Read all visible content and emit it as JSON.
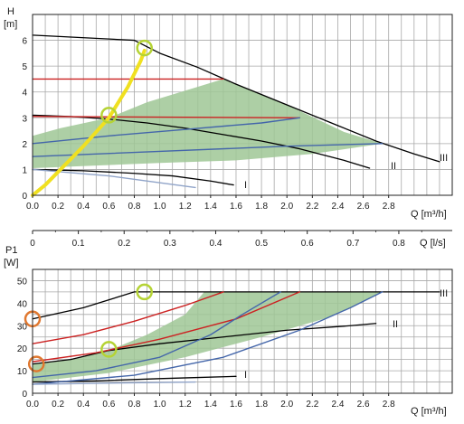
{
  "chart_data": [
    {
      "type": "line",
      "title": "",
      "ylabel": "H",
      "yunit": "[m]",
      "xlabel": "Q [m³/h]",
      "xlim": [
        0,
        3.3
      ],
      "ylim": [
        0,
        7
      ],
      "grid": true,
      "x_ticks": [
        "0.0",
        "0.2",
        "0.4",
        "0.6",
        "0.8",
        "1.0",
        "1.2",
        "1.4",
        "1.6",
        "1.8",
        "2.0",
        "2.2",
        "2.4",
        "2.6",
        "2.8"
      ],
      "y_ticks": [
        "0",
        "1",
        "2",
        "3",
        "4",
        "5",
        "6"
      ],
      "curve_labels": [
        "I",
        "II",
        "III"
      ],
      "shaded_region": [
        [
          0,
          2.3
        ],
        [
          0.22,
          2.6
        ],
        [
          0.6,
          3.0
        ],
        [
          0.9,
          3.6
        ],
        [
          1.3,
          4.2
        ],
        [
          1.5,
          4.5
        ],
        [
          2.0,
          3.5
        ],
        [
          2.45,
          2.45
        ],
        [
          2.75,
          2.0
        ],
        [
          2.2,
          1.6
        ],
        [
          1.6,
          1.35
        ],
        [
          1.0,
          1.25
        ],
        [
          0.5,
          1.15
        ],
        [
          0,
          1.05
        ]
      ],
      "series": [
        {
          "color": "#000000",
          "values": [
            [
              0,
              6.2
            ],
            [
              0.8,
              6.0
            ],
            [
              1.0,
              5.5
            ],
            [
              1.3,
              4.95
            ],
            [
              1.6,
              4.3
            ],
            [
              2.0,
              3.5
            ],
            [
              2.4,
              2.7
            ],
            [
              2.7,
              2.1
            ],
            [
              3.0,
              1.6
            ],
            [
              3.2,
              1.3
            ]
          ]
        },
        {
          "color": "#000000",
          "values": [
            [
              0,
              3.1
            ],
            [
              0.3,
              3.05
            ],
            [
              0.6,
              2.95
            ],
            [
              0.9,
              2.8
            ],
            [
              1.2,
              2.6
            ],
            [
              1.5,
              2.35
            ],
            [
              1.8,
              2.1
            ],
            [
              2.1,
              1.8
            ],
            [
              2.45,
              1.35
            ],
            [
              2.65,
              1.05
            ]
          ]
        },
        {
          "color": "#000000",
          "values": [
            [
              0,
              1.0
            ],
            [
              0.4,
              0.95
            ],
            [
              0.8,
              0.85
            ],
            [
              1.1,
              0.75
            ],
            [
              1.4,
              0.55
            ],
            [
              1.58,
              0.4
            ]
          ]
        },
        {
          "color": "#cc2222",
          "values": [
            [
              0,
              4.5
            ],
            [
              1.5,
              4.5
            ]
          ]
        },
        {
          "color": "#cc2222",
          "values": [
            [
              0,
              3.05
            ],
            [
              2.1,
              3.0
            ]
          ]
        },
        {
          "color": "#4466aa",
          "values": [
            [
              0,
              2.0
            ],
            [
              0.6,
              2.3
            ],
            [
              1.2,
              2.55
            ],
            [
              1.8,
              2.8
            ],
            [
              2.1,
              3.0
            ]
          ]
        },
        {
          "color": "#4466aa",
          "values": [
            [
              0,
              1.5
            ],
            [
              1.0,
              1.7
            ],
            [
              2.0,
              1.9
            ],
            [
              2.75,
              2.0
            ]
          ]
        },
        {
          "color": "#8fa3c8",
          "values": [
            [
              0,
              1.0
            ],
            [
              0.6,
              0.75
            ],
            [
              1.28,
              0.3
            ]
          ]
        },
        {
          "color": "#f0e020",
          "values": [
            [
              0,
              0
            ],
            [
              0.1,
              0.4
            ],
            [
              0.22,
              1.0
            ],
            [
              0.4,
              1.9
            ],
            [
              0.6,
              3.0
            ],
            [
              0.75,
              4.2
            ],
            [
              0.85,
              5.2
            ],
            [
              0.88,
              5.6
            ]
          ]
        }
      ],
      "markers": [
        {
          "color": "#b5d335",
          "x": 0.88,
          "y": 5.7
        },
        {
          "color": "#b5d335",
          "x": 0.6,
          "y": 3.1
        }
      ]
    },
    {
      "type": "line",
      "title": "",
      "xlabel": "Q [l/s]",
      "xlim": [
        0,
        0.9167
      ],
      "x_ticks": [
        "0",
        "0.1",
        "0.2",
        "0.3",
        "0.4",
        "0.5",
        "0.6",
        "0.7",
        "0.8"
      ]
    },
    {
      "type": "line",
      "title": "",
      "ylabel": "P1",
      "yunit": "[W]",
      "xlabel": "Q [m³/h]",
      "xlim": [
        0,
        3.3
      ],
      "ylim": [
        0,
        55
      ],
      "grid": true,
      "x_ticks": [
        "0.0",
        "0.2",
        "0.4",
        "0.6",
        "0.8",
        "1.0",
        "1.2",
        "1.4",
        "1.6",
        "1.8",
        "2.0",
        "2.2",
        "2.4",
        "2.6",
        "2.8"
      ],
      "y_ticks": [
        "0",
        "10",
        "20",
        "30",
        "40",
        "50"
      ],
      "curve_labels": [
        "I",
        "II",
        "III"
      ],
      "shaded_region": [
        [
          0,
          13
        ],
        [
          0.3,
          15
        ],
        [
          0.6,
          19
        ],
        [
          0.9,
          26
        ],
        [
          1.2,
          35
        ],
        [
          1.35,
          45
        ],
        [
          2.75,
          45
        ],
        [
          2.35,
          34
        ],
        [
          1.8,
          25
        ],
        [
          1.2,
          16
        ],
        [
          0.6,
          9
        ],
        [
          0,
          5
        ]
      ],
      "series": [
        {
          "color": "#000000",
          "values": [
            [
              0,
              33
            ],
            [
              0.4,
              38
            ],
            [
              0.8,
              45
            ],
            [
              3.2,
              45
            ]
          ]
        },
        {
          "color": "#000000",
          "values": [
            [
              0,
              13
            ],
            [
              0.3,
              15
            ],
            [
              0.6,
              19
            ],
            [
              1.0,
              22
            ],
            [
              1.5,
              25
            ],
            [
              2.0,
              28
            ],
            [
              2.5,
              30
            ],
            [
              2.7,
              31
            ]
          ]
        },
        {
          "color": "#000000",
          "values": [
            [
              0,
              5
            ],
            [
              0.5,
              5.5
            ],
            [
              1.0,
              6.5
            ],
            [
              1.3,
              7
            ],
            [
              1.6,
              7.5
            ]
          ]
        },
        {
          "color": "#cc2222",
          "values": [
            [
              0,
              22
            ],
            [
              0.4,
              26
            ],
            [
              0.8,
              32
            ],
            [
              1.2,
              39
            ],
            [
              1.5,
              45
            ]
          ]
        },
        {
          "color": "#cc2222",
          "values": [
            [
              0,
              14
            ],
            [
              0.5,
              18
            ],
            [
              1.0,
              24
            ],
            [
              1.6,
              33
            ],
            [
              2.1,
              45
            ]
          ]
        },
        {
          "color": "#4466aa",
          "values": [
            [
              0,
              7
            ],
            [
              0.5,
              10
            ],
            [
              1.0,
              16
            ],
            [
              1.4,
              26
            ],
            [
              1.65,
              35
            ],
            [
              1.95,
              45
            ]
          ]
        },
        {
          "color": "#4466aa",
          "values": [
            [
              0,
              4
            ],
            [
              0.8,
              8
            ],
            [
              1.5,
              16
            ],
            [
              2.1,
              28
            ],
            [
              2.5,
              38
            ],
            [
              2.75,
              45
            ]
          ]
        },
        {
          "color": "#8fa3c8",
          "values": [
            [
              0,
              4
            ],
            [
              0.6,
              4.5
            ],
            [
              1.28,
              5
            ]
          ]
        }
      ],
      "markers": [
        {
          "color": "#b5d335",
          "x": 0.88,
          "y": 45
        },
        {
          "color": "#b5d335",
          "x": 0.6,
          "y": 19.5
        },
        {
          "color": "#e07830",
          "x": 0,
          "y": 33
        },
        {
          "color": "#e07830",
          "x": 0.03,
          "y": 13
        }
      ]
    }
  ],
  "shade_color": "#9fc795"
}
